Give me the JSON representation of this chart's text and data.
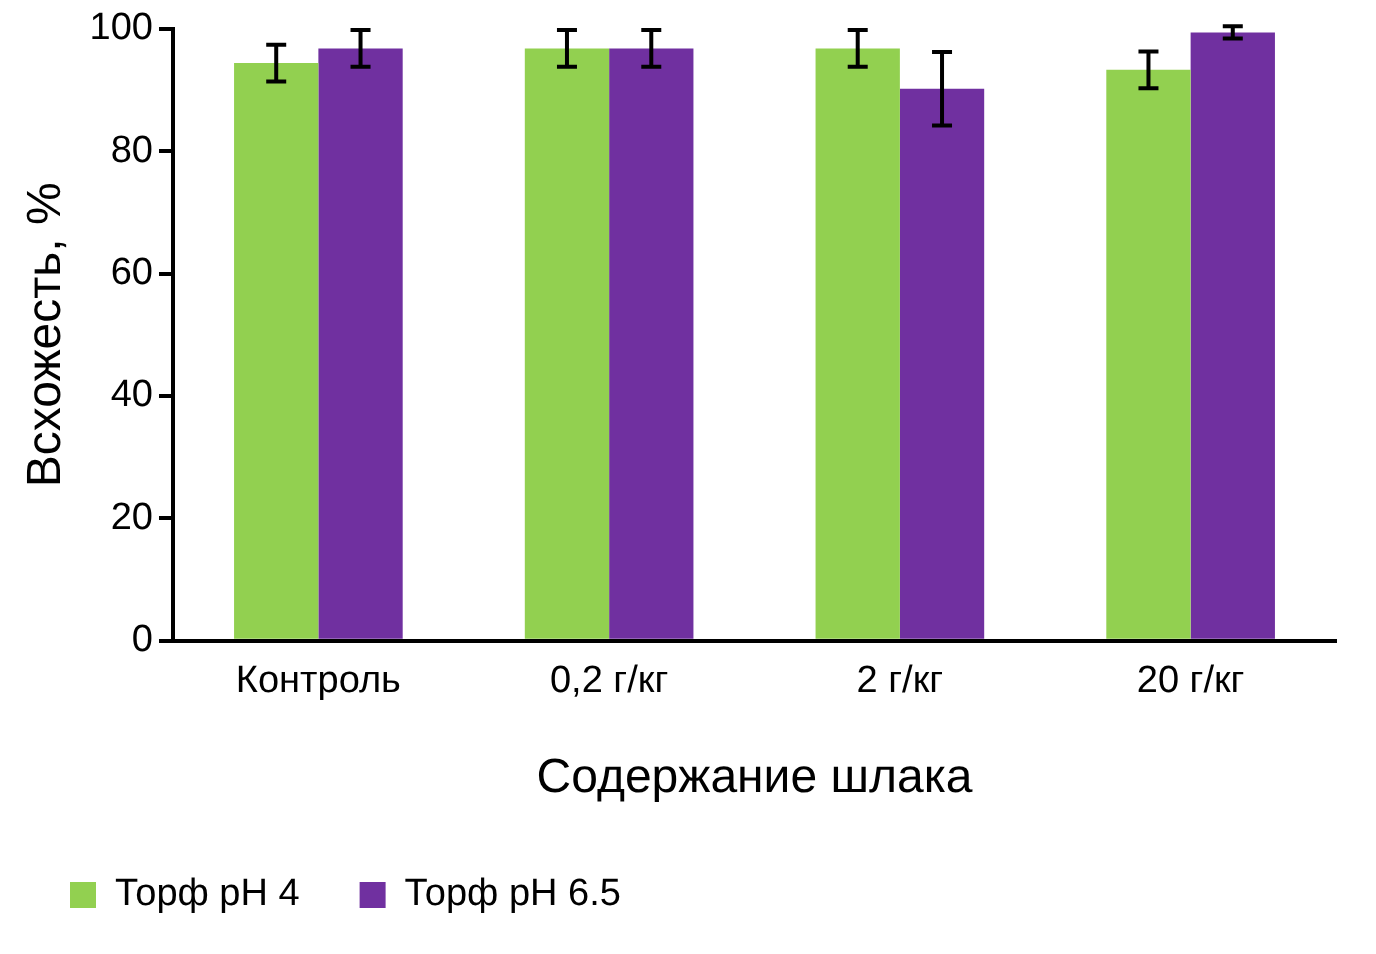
{
  "chart_data": {
    "type": "bar",
    "xlabel": "Содержание шлака",
    "ylabel": "Всхожесть, %",
    "categories": [
      "Контроль",
      "0,2 г/кг",
      "2 г/кг",
      "20 г/кг"
    ],
    "series": [
      {
        "name": "Торф pH 4",
        "color": "#92d050",
        "values": [
          94.4,
          96.8,
          96.8,
          93.3
        ],
        "errors": [
          3,
          3,
          3,
          3
        ]
      },
      {
        "name": "Торф pH 6.5",
        "color": "#7030a0",
        "values": [
          96.8,
          96.8,
          90.2,
          99.4
        ],
        "errors": [
          3,
          3,
          6,
          1
        ]
      }
    ],
    "ylim": [
      0,
      100
    ],
    "yticks": [
      0,
      20,
      40,
      60,
      80,
      100
    ],
    "grid": false,
    "legend": "bottom"
  }
}
